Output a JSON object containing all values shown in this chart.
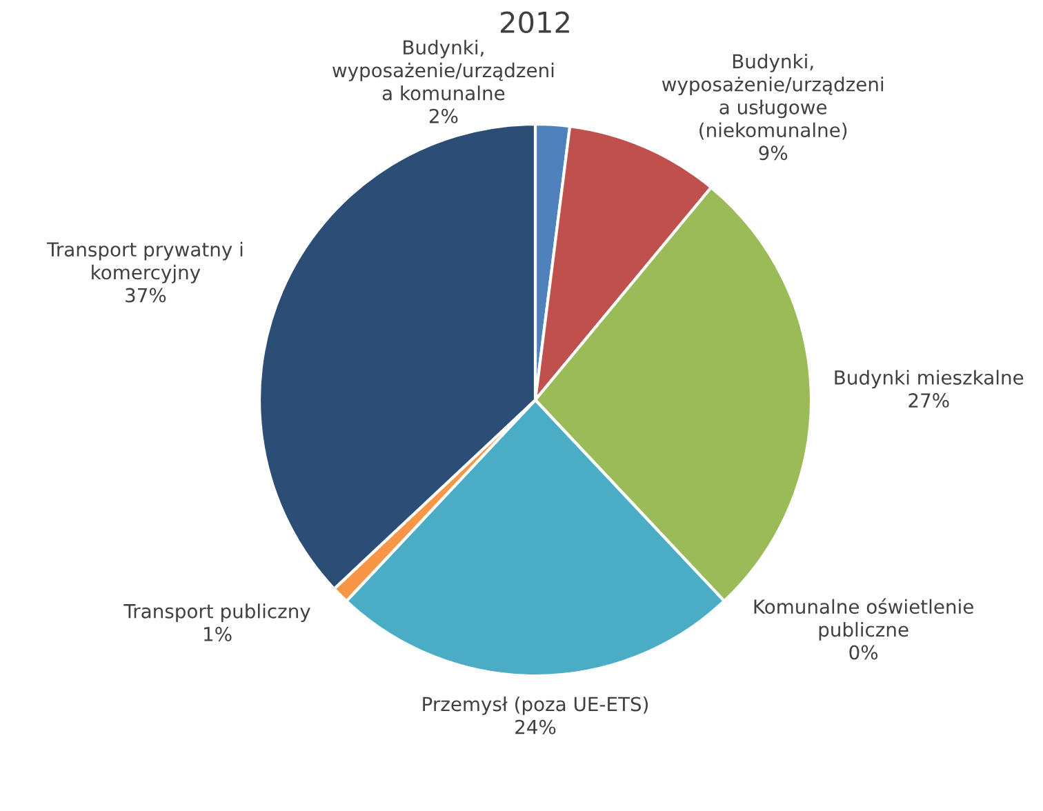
{
  "chart_data": {
    "type": "pie",
    "title": "2012",
    "categories": [
      "Budynki,\nwyposażenie/urządzeni\na komunalne",
      "Budynki,\nwyposażenie/urządzeni\na usługowe\n(niekomunalne)",
      "Budynki mieszkalne",
      "Komunalne oświetlenie\npubliczne",
      "Przemysł (poza UE-ETS)",
      "Transport publiczny",
      "Transport prywatny i\nkomercyjny"
    ],
    "values": [
      2,
      9,
      27,
      0,
      24,
      1,
      37
    ],
    "value_labels": [
      "2%",
      "9%",
      "27%",
      "0%",
      "24%",
      "1%",
      "37%"
    ],
    "colors": [
      "#4f81bd",
      "#c0504d",
      "#9bbb59",
      "#8064a2",
      "#4bacc6",
      "#f79646",
      "#2c4d75"
    ]
  }
}
